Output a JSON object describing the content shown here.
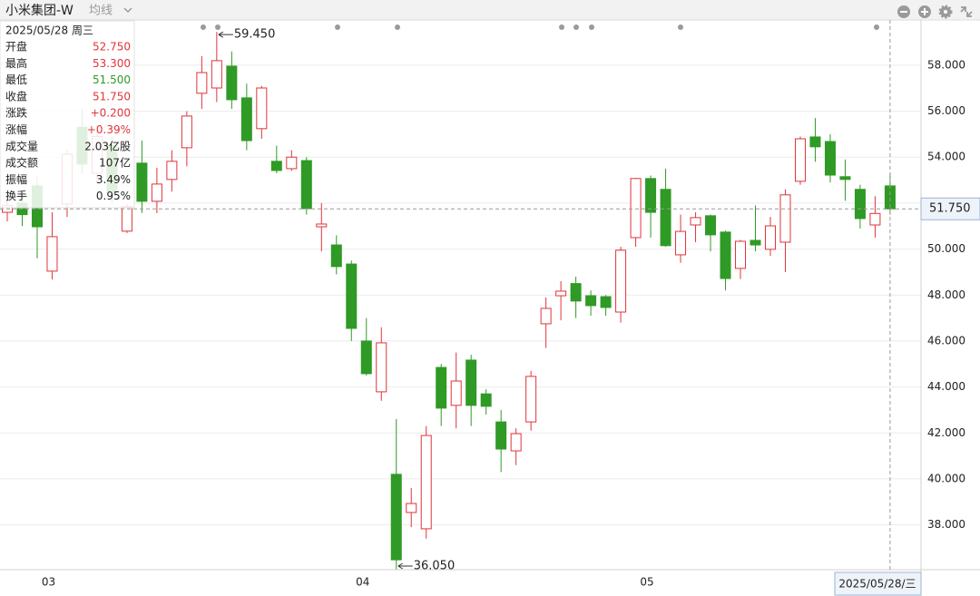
{
  "header": {
    "title": "小米集团-W",
    "indicator": "均线"
  },
  "info_panel": {
    "date": "2025/05/28 周三",
    "rows": [
      {
        "label": "开盘",
        "value": "52.750",
        "color": "#e0343a"
      },
      {
        "label": "最高",
        "value": "53.300",
        "color": "#e0343a"
      },
      {
        "label": "最低",
        "value": "51.500",
        "color": "#2f9a25"
      },
      {
        "label": "收盘",
        "value": "51.750",
        "color": "#e0343a"
      },
      {
        "label": "涨跌",
        "value": "+0.200",
        "color": "#e0343a"
      },
      {
        "label": "涨幅",
        "value": "+0.39%",
        "color": "#e0343a"
      },
      {
        "label": "成交量",
        "value": "2.03亿股",
        "color": "#222222"
      },
      {
        "label": "成交额",
        "value": "107亿",
        "color": "#222222"
      },
      {
        "label": "振幅",
        "value": "3.49%",
        "color": "#222222"
      },
      {
        "label": "换手",
        "value": "0.95%",
        "color": "#222222"
      }
    ]
  },
  "chart_data": {
    "type": "candlestick",
    "categories": [
      null,
      null,
      null,
      "03",
      null,
      null,
      null,
      null,
      null,
      null,
      null,
      null,
      null,
      null,
      null,
      null,
      null,
      null,
      null,
      null,
      null,
      null,
      null,
      null,
      "04",
      null,
      null,
      null,
      null,
      null,
      null,
      null,
      null,
      null,
      null,
      null,
      null,
      null,
      null,
      null,
      null,
      null,
      null,
      "05",
      null,
      null,
      null,
      null,
      null,
      null,
      null,
      null,
      null,
      null,
      null,
      null,
      null,
      null,
      null,
      null
    ],
    "open": [
      51.6,
      52.0,
      52.75,
      49.04,
      51.96,
      55.3,
      53.3,
      54.5,
      50.78,
      53.74,
      52.08,
      53.03,
      54.41,
      56.78,
      57.01,
      57.96,
      56.58,
      55.24,
      53.82,
      53.5,
      53.85,
      50.97,
      50.18,
      49.35,
      46.0,
      43.79,
      40.2,
      38.54,
      37.83,
      44.85,
      43.2,
      45.17,
      43.7,
      42.48,
      41.22,
      42.48,
      46.75,
      47.97,
      48.5,
      47.97,
      47.93,
      47.26,
      50.5,
      53.07,
      52.6,
      49.75,
      51.05,
      51.45,
      50.74,
      49.16,
      50.38,
      49.99,
      50.3,
      52.95,
      54.88,
      54.68,
      53.15,
      52.6,
      51.05,
      52.75
    ],
    "high": [
      52.3,
      52.4,
      53.15,
      51.6,
      54.3,
      56.1,
      55.4,
      54.9,
      51.96,
      54.72,
      53.54,
      54.3,
      56.0,
      58.4,
      59.45,
      58.6,
      57.2,
      57.1,
      54.5,
      54.3,
      54.0,
      52.0,
      50.6,
      49.5,
      47.0,
      46.6,
      42.6,
      39.6,
      42.3,
      45.0,
      45.5,
      45.4,
      43.9,
      43.0,
      42.2,
      44.7,
      47.9,
      48.6,
      48.8,
      48.2,
      48.0,
      50.1,
      53.1,
      53.2,
      53.5,
      51.5,
      51.6,
      51.5,
      50.8,
      50.4,
      51.9,
      51.4,
      52.6,
      54.9,
      55.7,
      55.0,
      53.9,
      52.8,
      52.3,
      53.3
    ],
    "low": [
      51.2,
      51.0,
      49.6,
      48.68,
      51.4,
      53.3,
      52.9,
      52.0,
      50.7,
      51.57,
      51.57,
      52.5,
      53.6,
      56.1,
      56.4,
      56.1,
      54.3,
      54.8,
      53.3,
      53.4,
      51.5,
      49.9,
      48.9,
      46.0,
      44.5,
      43.4,
      36.05,
      37.9,
      37.4,
      42.3,
      42.2,
      42.3,
      42.8,
      40.3,
      40.6,
      42.1,
      45.7,
      46.9,
      47.0,
      47.1,
      47.1,
      46.8,
      50.1,
      50.5,
      50.1,
      49.4,
      50.3,
      49.9,
      48.2,
      48.7,
      49.9,
      49.7,
      49.0,
      52.8,
      53.8,
      52.9,
      52.1,
      50.9,
      50.5,
      51.5
    ],
    "close": [
      51.9,
      51.5,
      50.97,
      50.54,
      54.13,
      53.7,
      54.9,
      52.5,
      51.84,
      52.08,
      52.83,
      53.82,
      55.79,
      57.68,
      58.2,
      56.5,
      54.72,
      57.01,
      53.42,
      54.0,
      51.76,
      51.09,
      49.24,
      46.55,
      44.58,
      45.92,
      36.48,
      38.93,
      41.89,
      43.08,
      44.26,
      43.2,
      43.16,
      41.3,
      41.97,
      44.46,
      47.42,
      48.17,
      47.74,
      47.54,
      47.46,
      49.95,
      53.07,
      51.6,
      50.15,
      50.77,
      51.37,
      50.62,
      48.72,
      50.34,
      50.18,
      51.01,
      52.36,
      54.8,
      54.45,
      53.22,
      53.03,
      51.33,
      51.55,
      51.75
    ],
    "up_color": "#e0343a",
    "down_color": "#2f9a25",
    "ylim": [
      36.05,
      59.97
    ],
    "yticks": [
      {
        "value": 38,
        "label": "38.000"
      },
      {
        "value": 40,
        "label": "40.000"
      },
      {
        "value": 42,
        "label": "42.000"
      },
      {
        "value": 44,
        "label": "44.000"
      },
      {
        "value": 46,
        "label": "46.000"
      },
      {
        "value": 48,
        "label": "48.000"
      },
      {
        "value": 50,
        "label": "50.000"
      },
      {
        "value": 52,
        "label": "52.000"
      },
      {
        "value": 54,
        "label": "54.000"
      },
      {
        "value": 56,
        "label": "56.000"
      },
      {
        "value": 58,
        "label": "58.000"
      }
    ],
    "grid": true,
    "annotations": [
      {
        "label": "59.450",
        "value": 59.45
      },
      {
        "label": "36.050",
        "value": 36.05
      }
    ],
    "last_price": {
      "value": 51.75,
      "label": "51.750"
    },
    "crosshair_date": "2025/05/28/三"
  }
}
